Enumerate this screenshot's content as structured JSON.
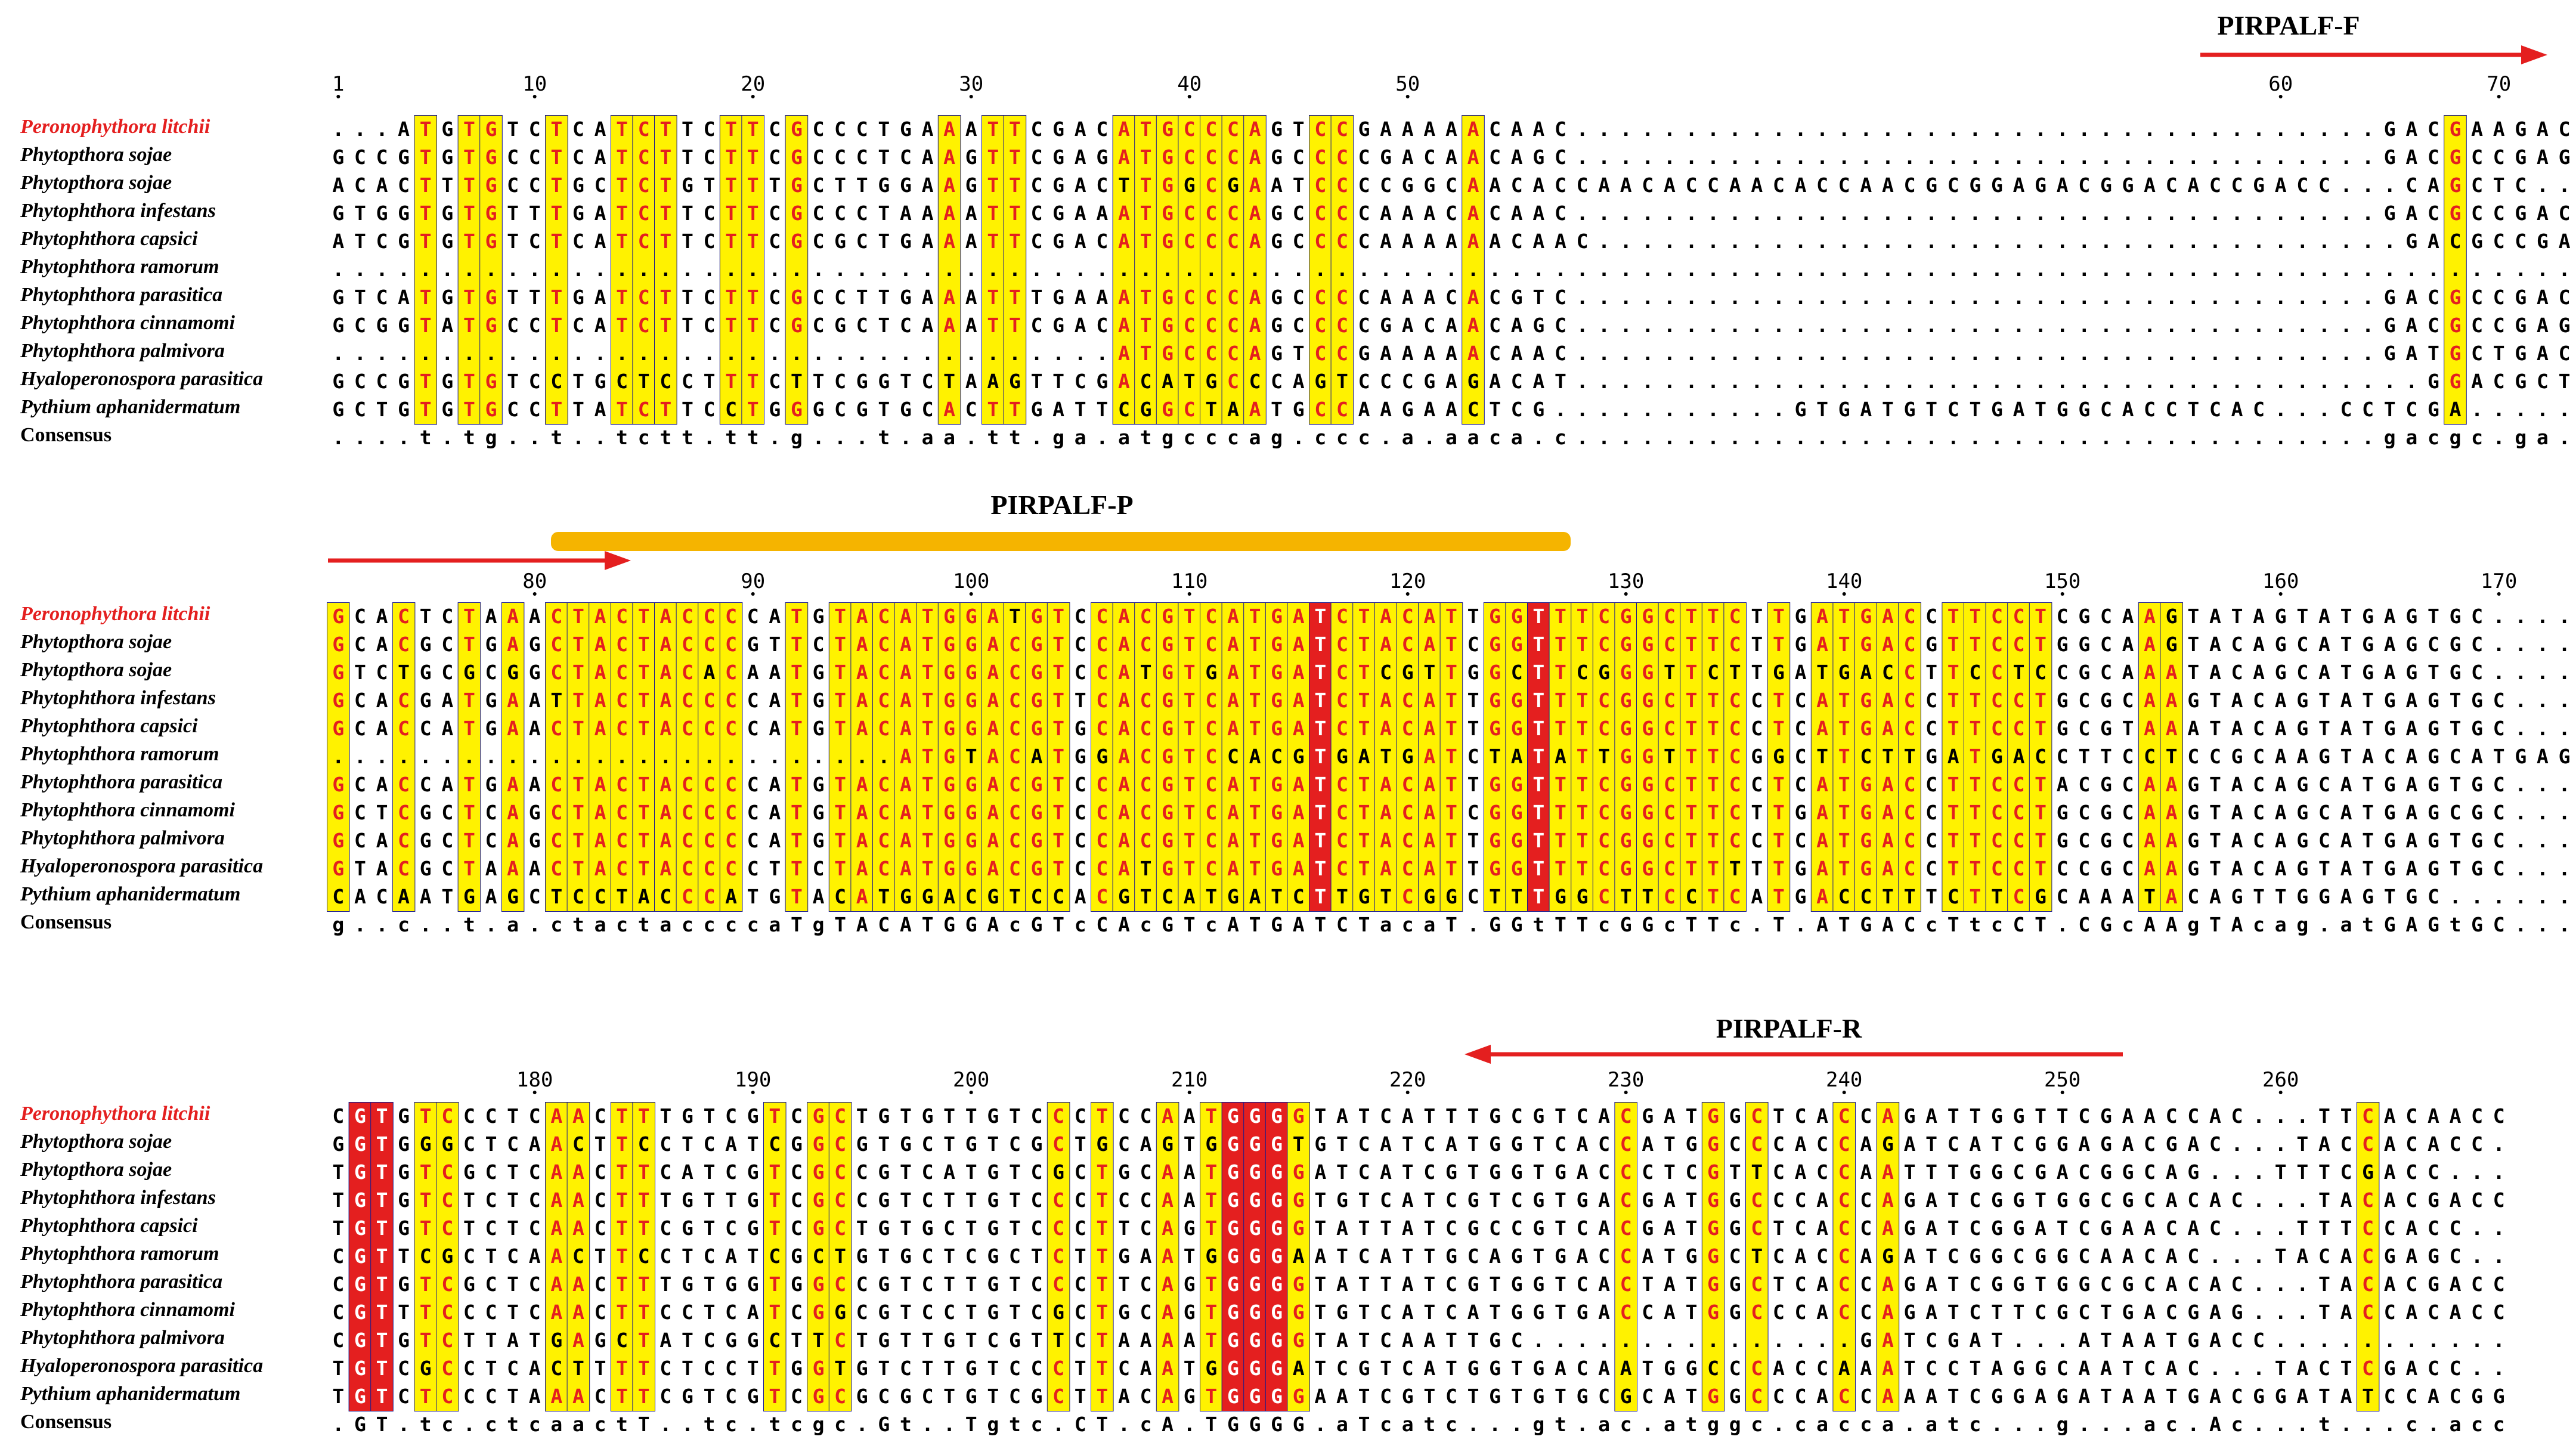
{
  "colors": {
    "conserved_bg": "#e41f1f",
    "conserved_text": "#ffffff",
    "similar_bg": "#fff200",
    "similar_text": "#e41f1f",
    "box_border": "#1a1a8c",
    "highlight_species": "#e41f1f",
    "primer_arrow": "#e41f1f",
    "probe_bar": "#f5b400"
  },
  "species": [
    "Peronophythora litchii",
    "Phytopthora sojae",
    "Phytopthora sojae",
    "Phytophthora infestans",
    "Phytophthora capsici",
    "Phytophthora ramorum",
    "Phytophthora parasitica",
    "Phytophthora cinnamomi",
    "Phytophthora palmivora",
    "Hyaloperonospora parasitica",
    "Pythium aphanidermatum"
  ],
  "consensus_label": "Consensus",
  "blocks": [
    {
      "ruler": [
        {
          "col": 0,
          "label": "1"
        },
        {
          "col": 9,
          "label": "10"
        },
        {
          "col": 19,
          "label": "20"
        },
        {
          "col": 29,
          "label": "30"
        },
        {
          "col": 39,
          "label": "40"
        },
        {
          "col": 49,
          "label": "50"
        },
        {
          "col": 89,
          "label": "60"
        },
        {
          "col": 99,
          "label": "70"
        }
      ],
      "rows": [
        "...ATGTGTCTCATCTTCTTCGCCCTGAAATTCGACATGCCCAGTCCGAAAAACAAC.....................................GACGAAGACA...CTGTCA",
        "GCCGTGTGCCTCATCTTCTTCGCCCTCAAGTTCGAGATGCCCAGCCCCGACAACAGC.....................................GACGCCGAGT...CCGCGA",
        "ACACTTTGCCTGCTCTGTTTTGCTTGGAAGTTCGACTTGGCGAATCCCCGGCAACACCAACACCAACACCAACGCGGAGACGGACACCGACC...CAGCTC",
        "GTGGTGTGTTTGATCTTCTTCGCCCTAAAATTCGAAATGCCCAGCCCCAAACACAAC.....................................GACGCCGACA...CGGTCA",
        "ATCGTGTGTCTCATCTTCTTCGCGCTGAAATTCGACATGCCCAGCCCCAAAAAACAAC.....................................GACGCCGACA...CTGTGA",
        "...........................................................................................................",
        "GTCATGTGTTTGATCTTCTTCGCCTTGAAATTTGAAATGCCCAGCCCCAAACACGTC.....................................GACGCCGACA...CTGTGA",
        "GCGGTATGCCTCATCTTCTTCGCGCTCAAATTCGACATGCCCAGCCCCGACAACAGC.....................................GACGCCGAGTCCACGAGCA",
        "....................................ATGCCCAGTCCGAAAAACAAC.....................................GATGCTGACA...CTGTCA",
        "GCCGTGTGTCCTGCTCCTTTCTTCGGTCTAAGTTCGACATGCCCAGTCCCGAGACAT.......................................GGACGCTGCCA...CAAGCG",
        "GCTGTGTGCCTTATCTTCCTGGGCGTGCACTTGATTCGGCTAATGCCAAGAACTCG...........GTGATGTCTGATGGCACCTCAC...CCTCGA"
      ],
      "consensus": "....t.tg..t..tctt.tt.g...t.aa.tt.ga.atgcccag.ccc.a.aaca.c.....................................gacgc.ga.....c....a"
    },
    {
      "ruler": [
        {
          "col": 9,
          "label": "80"
        },
        {
          "col": 19,
          "label": "90"
        },
        {
          "col": 29,
          "label": "100"
        },
        {
          "col": 39,
          "label": "110"
        },
        {
          "col": 49,
          "label": "120"
        },
        {
          "col": 59,
          "label": "130"
        },
        {
          "col": 69,
          "label": "140"
        },
        {
          "col": 79,
          "label": "150"
        },
        {
          "col": 89,
          "label": "160"
        },
        {
          "col": 99,
          "label": "170"
        }
      ],
      "rows": [
        "GCACTCTAAACTACTACCCCATGTACATGGATGTCCACGTCATGATCTACATTGGTTTCGGCTTCTTGATGACCTTCCTCGCAAGTATAGTATGAGTGC",
        "GCACGCTGAGCTACTACCCGTTCTACATGGACGTCCACGTCATGATCTACATCGGTTTCGGCTTCTTGATGACGTTCCTGGCAAGTACAGCATGAGCGC",
        "GTCTGCGCGGCTACTACACAATGTACATGGACGTCCATGTGATGATCTCGTTGGCTTCGGGTTCTTGATGACCTTCCTCCGCAAATACAGCATGAGTGC",
        "GCACGATGAATTACTACCCCATGTACATGGACGTTCACGTCATGATCTACATTGGTTTCGGCTTCCTCATGACCTTCCTGCGCAAGTACAGTATGAGTGC",
        "GCACCATGAACTACTACCCCATGTACATGGACGTGCACGTCATGATCTACATTGGTTTCGGCTTCCTCATGACCTTCCTGCGTAAATACAGTATGAGTGC",
        "..........................ATGTACATGGACGTCCACGTGATGATCTATATTGGTTTCGGCTTCTTGATGACCTTCCTCCGCAAGTACAGCATGAGTGC",
        "GCACCATGAACTACTACCCCATGTACATGGACGTCCACGTCATGATCTACATTGGTTTCGGCTTCCTCATGACCTTCCTACGCAAGTACAGCATGAGTGC",
        "GCTCGCTCAGCTACTACCCCATGTACATGGACGTCCACGTCATGATCTACATCGGTTTCGGCTTCTTGATGACCTTCCTGCGCAAGTACAGCATGAGCGC",
        "GCACGCTCAGCTACTACCCCATGTACATGGACGTCCACGTCATGATCTACATTGGTTTCGGCTTCCTCATGACCTTCCTGCGCAAGTACAGCATGAGTGC",
        "GTACGCTAAACTACTACCCCTTCTACATGGACGTCCATGTCATGATCTACATTGGTTTCGGCTTTTTGATGACCTTCCTCCGCAAGTACAGTATGAGTGC",
        "CACAATGAGCTCCTACCCATGTACATGGACGTCCACGTCATGATCTTGTCGGCTTTGGCTTCCTCATGACCTTTCTTCGCAAATACAGTTGGAGTGC"
      ],
      "consensus": "g..c..t.a.ctactaccccaTgTACATGGAcGTcCAcGTcATGATCTacaT.GGtTTcGGcTTc.T.ATGACcTtcCT.CGcAAgTAcag.atGAGtGC"
    },
    {
      "ruler": [
        {
          "col": 9,
          "label": "180"
        },
        {
          "col": 19,
          "label": "190"
        },
        {
          "col": 29,
          "label": "200"
        },
        {
          "col": 39,
          "label": "210"
        },
        {
          "col": 49,
          "label": "220"
        },
        {
          "col": 59,
          "label": "230"
        },
        {
          "col": 69,
          "label": "240"
        },
        {
          "col": 79,
          "label": "250"
        },
        {
          "col": 89,
          "label": "260"
        }
      ],
      "rows": [
        "CGTGTCCCTCAACTTTGTCGTCGCTGTGTTGTCCCTCCAATGGGGTATCATTTGCGTCACGATGGCTCACCAGATTGGTTCGAACCAC...TTCACAACC",
        "GGTGGGCTCAACTTCCTCATCGGCGTGCTGTCGCTGCAGTGGGGTGTCATCATGGTCACCATGGCCCACCAGATCATCGGAGACGAC...TACCACACC",
        "TGTGTCGCTCAACTTCATCGTCGCCGTCATGTCGCTGCAATGGGGATCATCGTGGTGACCCTCGTTCACCAATTTGGCGACGGCAG...TTTCGACC",
        "TGTGTCTCTCAACTTTGTTGTCGCCGTCTTGTCCCTCCAATGGGGTGTCATCGTCGTGACGATGGCCCACCAGATCGGTGGCGCACAC...TACACGACC",
        "TGTGTCTCTCAACTTCGTCGTCGCTGTGCTGTCCCTTCAGTGGGGTATTATCGCCGTCACGATGGCTCACCAGATCGGATCGAACAC...TTTCCACC",
        "CGTTCGCTCAACTTCCTCATCGCTGTGCTCGCTCTTGAATGGGGAATCATTGCAGTGACCATGGCTCACCAGATCGGCGGCAACAC...TACACGAGC",
        "CGTGTCGCTCAACTTTGTGGTGGCCGTCTTGTCCCTTCAGTGGGGTATTATCGTGGTCACTATGGCTCACCAGATCGGTGGCGCACAC...TACACGACC",
        "CGTTTCCCTCAACTTCCTCATCGGCGTCCTGTCGCTGCAGTGGGGTGTCATCATGGTGACCATGGCCCACCAGATCTTCGCTGACGAG...TACCACACC",
        "CGTGTCTTATGAGCTATCGGCTTCTGTTGTCGTTCTAAAATGGGGTATCAATTGC...............GATCGAT...ATAATGACC",
        "TGTCGCCTCACTTTTCTCCTTGGTGTCTTGTCCCTTCAATGGGGATCGTCATGGTGACAATGGCCCACCAAATCCTAGGCAATCAC...TACTCGACC",
        "TGTCTCCCTAAACTTCGTCGTCGCGCGCTGTCGCTTACAGTGGGGAATCGTCTGTGTGCGCATGGCCCACCAAATCGGAGATAATGACGGATATCCACGG"
      ],
      "consensus": ".GT.tc.ctcaactT..tc.tcgc.Gt..Tgtc.CT.cA.TGGGG.aTcatc...gt.ac.atggc.cacca.atc...g...ac.Ac...t...c.acc"
    }
  ],
  "primers": {
    "forward_label": "PIRPALF-F",
    "probe_label": "PIRPALF-P",
    "reverse_label": "PIRPALF-R"
  }
}
